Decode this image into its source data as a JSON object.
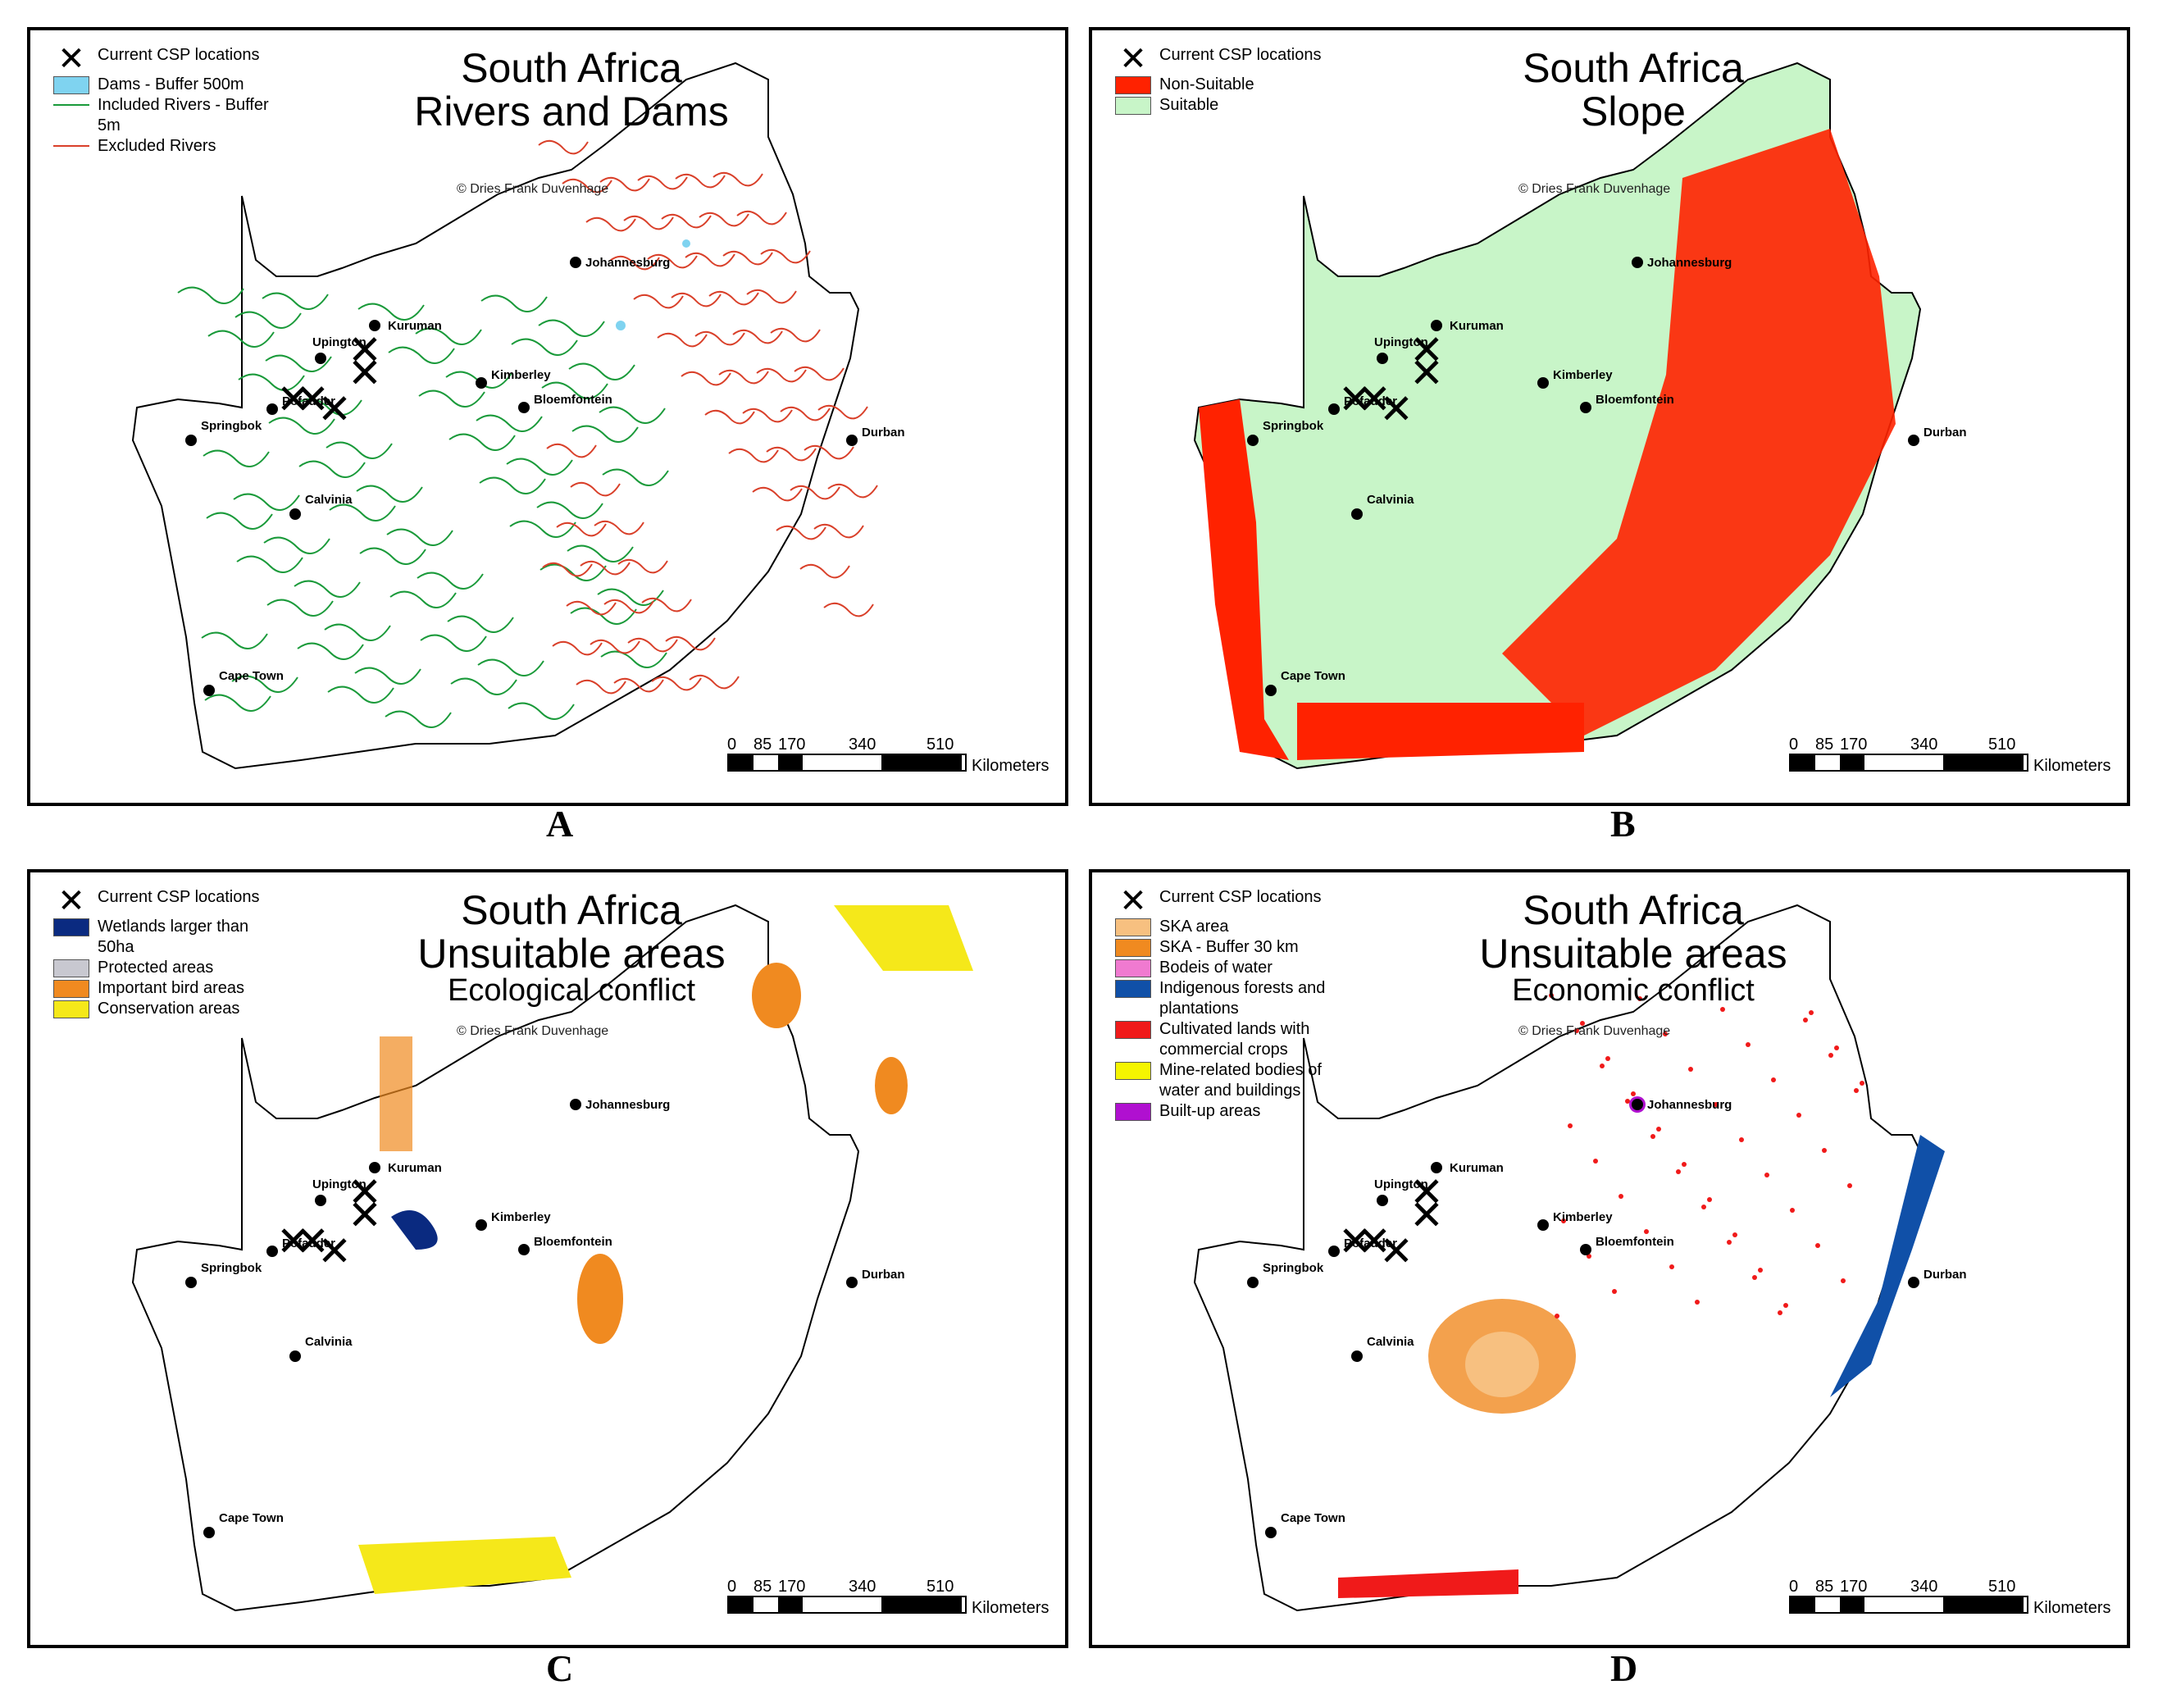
{
  "panels": [
    {
      "id": "A",
      "title_line1": "South Africa",
      "title_line2": "Rivers and Dams",
      "title_line3": "",
      "copyright": "© Dries Frank Duvenhage",
      "legend": [
        {
          "label": "Current CSP locations",
          "type": "x"
        },
        {
          "label": "Dams - Buffer 500m",
          "type": "box",
          "color": "#7fd3f0"
        },
        {
          "label": "Included Rivers - Buffer 5m",
          "type": "line",
          "color": "#1a9a3a"
        },
        {
          "label": "Excluded Rivers",
          "type": "line",
          "color": "#d9402a"
        }
      ],
      "land_color": "#ffffff",
      "panel_label": "A"
    },
    {
      "id": "B",
      "title_line1": "South Africa",
      "title_line2": "Slope",
      "title_line3": "",
      "copyright": "© Dries Frank Duvenhage",
      "legend": [
        {
          "label": "Current CSP locations",
          "type": "x"
        },
        {
          "label": "Non-Suitable",
          "type": "box",
          "color": "#ff2200"
        },
        {
          "label": "Suitable",
          "type": "box",
          "color": "#c8f5c8"
        }
      ],
      "land_color": "#c8f5c8",
      "panel_label": "B"
    },
    {
      "id": "C",
      "title_line1": "South Africa",
      "title_line2": "Unsuitable areas",
      "title_line3": "Ecological conflict",
      "copyright": "© Dries Frank Duvenhage",
      "legend": [
        {
          "label": "Current CSP locations",
          "type": "x"
        },
        {
          "label": "Wetlands larger than 50ha",
          "type": "box",
          "color": "#0a2a80"
        },
        {
          "label": "Protected areas",
          "type": "box",
          "color": "#c8c8d0"
        },
        {
          "label": "Important bird areas",
          "type": "box",
          "color": "#f08a20"
        },
        {
          "label": "Conservation areas",
          "type": "box",
          "color": "#f5e81a"
        }
      ],
      "land_color": "#ffffff",
      "panel_label": "C"
    },
    {
      "id": "D",
      "title_line1": "South Africa",
      "title_line2": "Unsuitable areas",
      "title_line3": "Economic conflict",
      "copyright": "© Dries Frank Duvenhage",
      "legend": [
        {
          "label": "Current CSP locations",
          "type": "x"
        },
        {
          "label": "SKA area",
          "type": "box",
          "color": "#f7c080"
        },
        {
          "label": "SKA - Buffer 30 km",
          "type": "box",
          "color": "#f08a20"
        },
        {
          "label": "Bodeis of water",
          "type": "box",
          "color": "#f07ad0"
        },
        {
          "label": "Indigenous forests and plantations",
          "type": "box",
          "color": "#1050a8"
        },
        {
          "label": "Cultivated lands with commercial crops",
          "type": "box",
          "color": "#f01a1a"
        },
        {
          "label": "Mine-related bodies of water and buildings",
          "type": "box",
          "color": "#f5f500"
        },
        {
          "label": "Built-up areas",
          "type": "box",
          "color": "#b010d0"
        }
      ],
      "land_color": "#ffffff",
      "panel_label": "D"
    }
  ],
  "cities": [
    "Johannesburg",
    "Kuruman",
    "Upington",
    "Kimberley",
    "Pofadder",
    "Bloemfontein",
    "Springbok",
    "Durban",
    "Calvinia",
    "Cape Town"
  ],
  "scale": {
    "ticks": [
      "0",
      "85",
      "170",
      "340",
      "510"
    ],
    "unit": "Kilometers"
  }
}
